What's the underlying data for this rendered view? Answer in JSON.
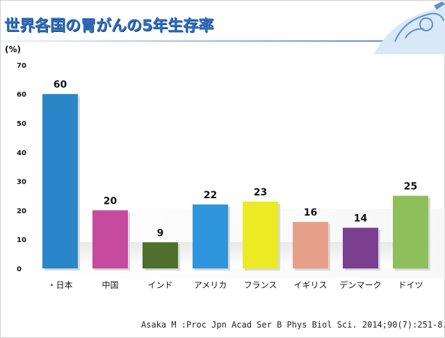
{
  "page": {
    "title": "世界各国の胃がんの5年生存率",
    "citation": "Asaka M :Proc Jpn Acad Ser B Phys Biol Sci. 2014;90(7):251-8."
  },
  "chart_data": {
    "type": "bar",
    "title": "世界各国の胃がんの5年生存率",
    "ylabel": "(%)",
    "xlabel": "",
    "ylim": [
      0,
      70
    ],
    "yticks": [
      "0",
      "10",
      "20",
      "30",
      "40",
      "50",
      "60",
      "70"
    ],
    "grid": false,
    "categories": [
      "・日本",
      "中国",
      "インド",
      "アメリカ",
      "フランス",
      "イギリス",
      "デンマーク",
      "ドイツ"
    ],
    "values": [
      60,
      20,
      9,
      22,
      23,
      16,
      14,
      25
    ],
    "data_labels": [
      "60",
      "20",
      "9",
      "22",
      "23",
      "16",
      "14",
      "25"
    ],
    "colors": [
      "#2a86c8",
      "#c64b9e",
      "#4f6f2e",
      "#2f95dc",
      "#ecea22",
      "#e6a08a",
      "#7b3f8f",
      "#8ebf5a"
    ]
  }
}
